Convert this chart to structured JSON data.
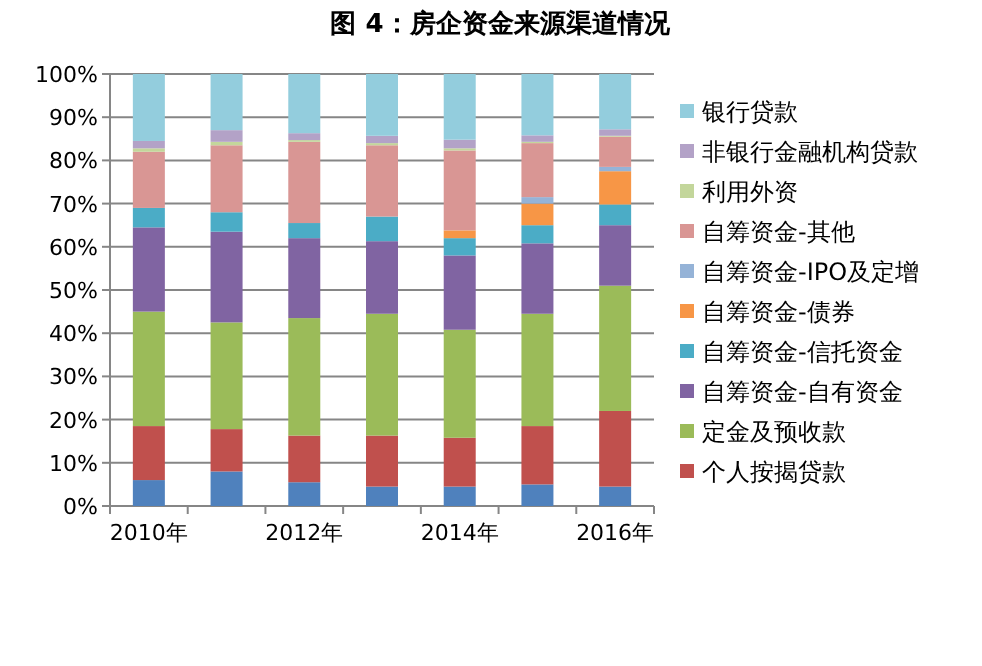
{
  "chart_data": {
    "type": "bar",
    "stacked": true,
    "title": "图 4：房企资金来源渠道情况",
    "categories": [
      "2010年",
      null,
      "2012年",
      null,
      "2014年",
      null,
      "2016年"
    ],
    "series": [
      {
        "color": "#4f81bd",
        "values": [
          6,
          8,
          5.5,
          4.5,
          4.5,
          5,
          4.5
        ]
      },
      {
        "name": "个人按揭贷款",
        "color": "#c0504d",
        "values": [
          12.5,
          9.8,
          10.8,
          11.8,
          11.3,
          13.5,
          17.5
        ]
      },
      {
        "name": "定金及预收款",
        "color": "#9bbb59",
        "values": [
          26.5,
          24.7,
          27.2,
          28.2,
          25,
          26,
          29
        ]
      },
      {
        "name": "自筹资金-自有资金",
        "color": "#8064a2",
        "values": [
          19.5,
          21,
          18.5,
          16.8,
          17.2,
          16.3,
          14
        ]
      },
      {
        "name": "自筹资金-信托资金",
        "color": "#4bacc6",
        "values": [
          4.5,
          4.5,
          3.5,
          5.7,
          4,
          4.2,
          4.8
        ]
      },
      {
        "name": "自筹资金-债券",
        "color": "#f79646",
        "values": [
          0,
          0,
          0,
          0,
          1.8,
          5,
          7.7
        ]
      },
      {
        "name": "自筹资金-IPO及定增",
        "color": "#95b3d7",
        "values": [
          0,
          0,
          0,
          0,
          0,
          1.5,
          1
        ]
      },
      {
        "name": "自筹资金-其他",
        "color": "#d99694",
        "values": [
          13,
          15.5,
          18.8,
          16.5,
          18.5,
          12.5,
          7
        ]
      },
      {
        "name": "利用外资",
        "color": "#c3d69b",
        "values": [
          0.8,
          0.8,
          0.4,
          0.5,
          0.5,
          0.3,
          0.2
        ]
      },
      {
        "name": "非银行金融机构贷款",
        "color": "#b3a2c7",
        "values": [
          1.7,
          2.7,
          1.6,
          1.7,
          2,
          1.5,
          1.5
        ]
      },
      {
        "name": "银行贷款",
        "color": "#93cddd",
        "values": [
          15.5,
          13,
          13.7,
          14.3,
          15.2,
          14.2,
          12.8
        ]
      }
    ],
    "ylim": [
      0,
      100
    ],
    "yticks": [
      {
        "value": 0,
        "label": "0%"
      },
      {
        "value": 10,
        "label": "10%"
      },
      {
        "value": 20,
        "label": "20%"
      },
      {
        "value": 30,
        "label": "30%"
      },
      {
        "value": 40,
        "label": "40%"
      },
      {
        "value": 50,
        "label": "50%"
      },
      {
        "value": 60,
        "label": "60%"
      },
      {
        "value": 70,
        "label": "70%"
      },
      {
        "value": 80,
        "label": "80%"
      },
      {
        "value": 90,
        "label": "90%"
      },
      {
        "value": 100,
        "label": "100%"
      }
    ],
    "grid": "y",
    "legend": "right"
  }
}
